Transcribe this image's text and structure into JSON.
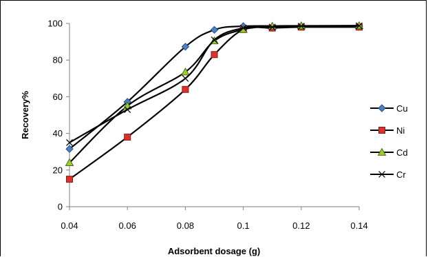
{
  "chart_data": {
    "type": "line",
    "xlabel": "Adsorbent dosage  (g)",
    "ylabel": "Recovery%",
    "xlim": [
      0.04,
      0.14
    ],
    "ylim": [
      0,
      100
    ],
    "xticks": [
      "0.04",
      "0.06",
      "0.08",
      "0.1",
      "0.12",
      "0.14"
    ],
    "xtick_values": [
      0.04,
      0.06,
      0.08,
      0.1,
      0.12,
      0.14
    ],
    "yticks": [
      "0",
      "20",
      "40",
      "60",
      "80",
      "100"
    ],
    "ytick_values": [
      0,
      20,
      40,
      60,
      80,
      100
    ],
    "grid": false,
    "legend_position": "right",
    "series": [
      {
        "name": "Cu",
        "color": "#1f4e8c",
        "marker": "diamond",
        "x": [
          0.04,
          0.06,
          0.08,
          0.09,
          0.1,
          0.12,
          0.14
        ],
        "y": [
          31.5,
          57.2,
          87.3,
          96.5,
          98.5,
          98.5,
          98.5
        ]
      },
      {
        "name": "Ni",
        "color": "#d9332b",
        "marker": "square",
        "x": [
          0.04,
          0.06,
          0.08,
          0.09,
          0.1,
          0.11,
          0.12,
          0.14
        ],
        "y": [
          15,
          38,
          64,
          83,
          96.7,
          97.5,
          98,
          98
        ]
      },
      {
        "name": "Cd",
        "color": "#9acd32",
        "marker": "triangle",
        "x": [
          0.04,
          0.06,
          0.08,
          0.09,
          0.1,
          0.11,
          0.12,
          0.14
        ],
        "y": [
          24,
          55,
          73.5,
          90.5,
          96.7,
          98.5,
          98.7,
          98.8
        ]
      },
      {
        "name": "Cr",
        "color": "#000000",
        "marker": "cross",
        "x": [
          0.04,
          0.06,
          0.08,
          0.09,
          0.1,
          0.11,
          0.12,
          0.14
        ],
        "y": [
          35,
          53,
          70,
          91,
          97.5,
          98,
          98.5,
          98.7
        ]
      }
    ]
  }
}
